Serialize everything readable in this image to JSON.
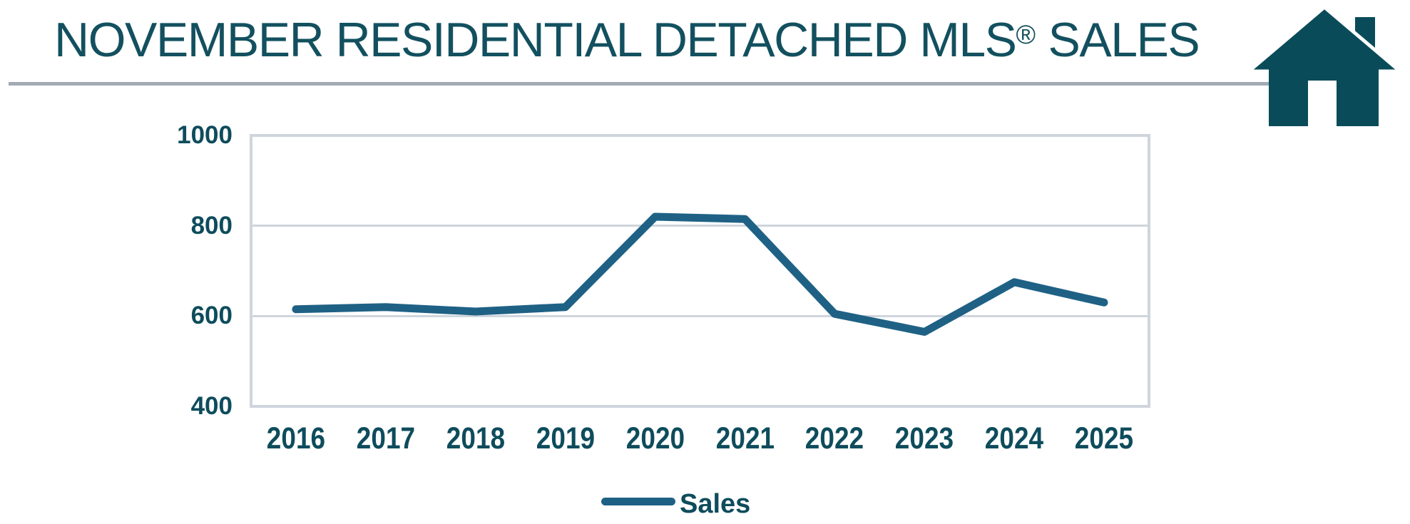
{
  "title": {
    "main": "NOVEMBER RESIDENTIAL DETACHED MLS",
    "reg": "®",
    "tail": " SALES"
  },
  "chart_data": {
    "type": "line",
    "title": "NOVEMBER RESIDENTIAL DETACHED MLS® SALES",
    "categories": [
      "2016",
      "2017",
      "2018",
      "2019",
      "2020",
      "2021",
      "2022",
      "2023",
      "2024",
      "2025"
    ],
    "series": [
      {
        "name": "Sales",
        "values": [
          615,
          620,
          610,
          620,
          820,
          815,
          605,
          565,
          675,
          630
        ]
      }
    ],
    "xlabel": "",
    "ylabel": "",
    "ylim": [
      400,
      1000
    ],
    "y_ticks": [
      1000,
      800,
      600,
      400
    ],
    "grid": "horizontal",
    "legend_position": "bottom-center"
  },
  "icons": {
    "logo": "house-icon"
  },
  "colors": {
    "title_text": "#13505F",
    "axis_text": "#0E4C5C",
    "line": "#1F6185",
    "grid": "#CFD5DC",
    "divider": "#A2ABB4",
    "house": "#0A4B59"
  }
}
